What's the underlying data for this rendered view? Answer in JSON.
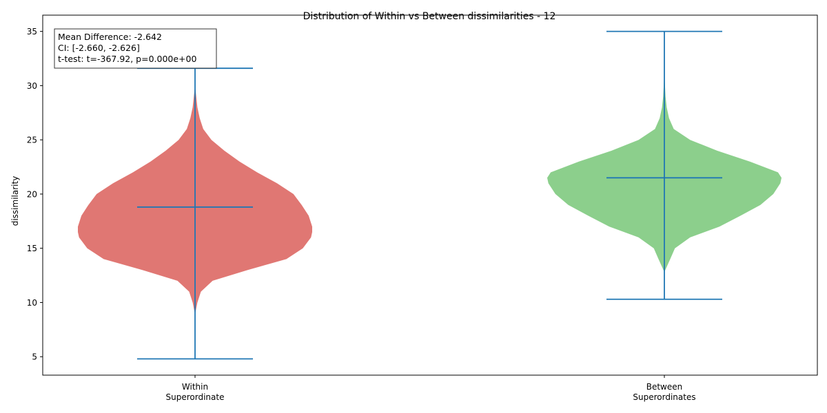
{
  "chart_data": {
    "type": "violin",
    "title": "Distribution of Within vs Between dissimilarities - 12",
    "xlabel": "",
    "ylabel": "dissimilarity",
    "ylim": [
      3.3,
      36.5
    ],
    "yticks": [
      5,
      10,
      15,
      20,
      25,
      30,
      35
    ],
    "grid": false,
    "line_color": "#1f77b4",
    "categories": [
      {
        "label_lines": [
          "Within",
          "Superordinate"
        ],
        "color": "#e07773",
        "min": 4.8,
        "max": 31.6,
        "mean": 18.8,
        "density": [
          [
            8.9,
            0.0
          ],
          [
            10.0,
            0.02
          ],
          [
            11.0,
            0.05
          ],
          [
            12.0,
            0.15
          ],
          [
            13.0,
            0.45
          ],
          [
            14.0,
            0.78
          ],
          [
            15.0,
            0.92
          ],
          [
            16.0,
            0.99
          ],
          [
            16.5,
            1.0
          ],
          [
            17.0,
            1.0
          ],
          [
            18.0,
            0.97
          ],
          [
            19.0,
            0.91
          ],
          [
            20.0,
            0.84
          ],
          [
            21.0,
            0.7
          ],
          [
            22.0,
            0.53
          ],
          [
            23.0,
            0.38
          ],
          [
            24.0,
            0.25
          ],
          [
            25.0,
            0.14
          ],
          [
            26.0,
            0.07
          ],
          [
            27.0,
            0.04
          ],
          [
            28.0,
            0.02
          ],
          [
            29.0,
            0.01
          ],
          [
            30.0,
            0.0
          ]
        ]
      },
      {
        "label_lines": [
          "Between",
          "Superordinates"
        ],
        "color": "#8ccf8c",
        "min": 10.3,
        "max": 35.0,
        "mean": 21.5,
        "density": [
          [
            12.8,
            0.0
          ],
          [
            14.0,
            0.05
          ],
          [
            15.0,
            0.09
          ],
          [
            16.0,
            0.22
          ],
          [
            17.0,
            0.47
          ],
          [
            18.0,
            0.65
          ],
          [
            19.0,
            0.82
          ],
          [
            20.0,
            0.93
          ],
          [
            21.0,
            0.99
          ],
          [
            21.5,
            1.0
          ],
          [
            22.0,
            0.97
          ],
          [
            23.0,
            0.73
          ],
          [
            24.0,
            0.45
          ],
          [
            25.0,
            0.22
          ],
          [
            26.0,
            0.08
          ],
          [
            27.0,
            0.04
          ],
          [
            28.0,
            0.02
          ],
          [
            29.0,
            0.01
          ],
          [
            30.0,
            0.005
          ],
          [
            31.0,
            0.0
          ]
        ]
      }
    ],
    "annotation": {
      "position": "top-left",
      "lines": [
        "Mean Difference: -2.642",
        "CI: [-2.660, -2.626]",
        "t-test: t=-367.92, p=0.000e+00"
      ]
    }
  }
}
